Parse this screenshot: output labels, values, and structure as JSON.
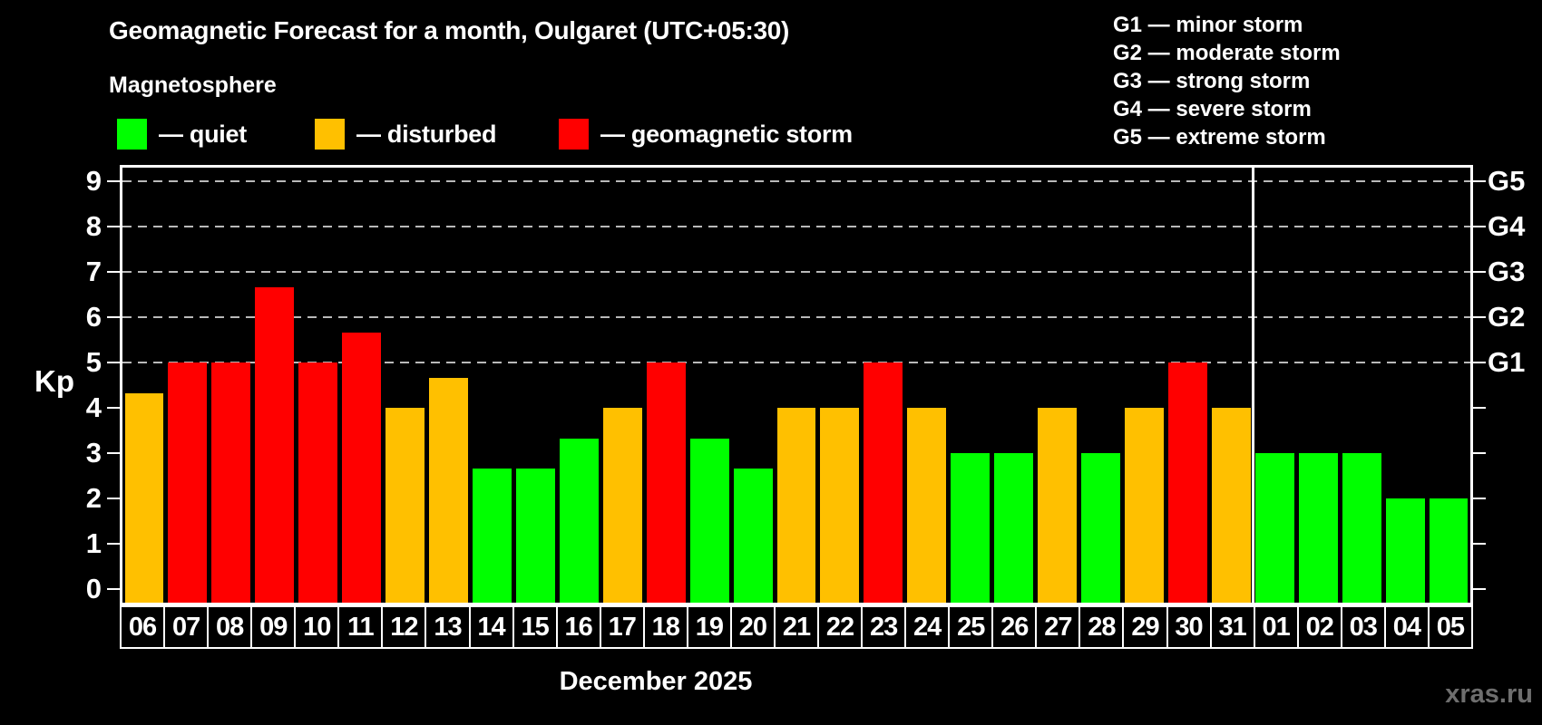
{
  "page": {
    "title": "Geomagnetic Forecast for a month, Oulgaret (UTC+05:30)",
    "subtitle": "Magnetosphere",
    "watermark": "xras.ru"
  },
  "legend": {
    "items": [
      {
        "name": "quiet",
        "label": "— quiet",
        "color": "#00ff00",
        "x": 129
      },
      {
        "name": "disturbed",
        "label": "— disturbed",
        "color": "#ffc000",
        "x": 347
      },
      {
        "name": "storm",
        "label": "— geomagnetic storm",
        "color": "#ff0000",
        "x": 616
      }
    ]
  },
  "g_scale_legend": {
    "lines": [
      "G1 — minor storm",
      "G2 — moderate storm",
      "G3 — strong storm",
      "G4 — severe storm",
      "G5 — extreme storm"
    ]
  },
  "chart_data": {
    "type": "bar",
    "title": "Geomagnetic Forecast for a month, Oulgaret (UTC+05:30)",
    "xlabel": "December 2025",
    "ylabel": "Kp",
    "ylim": [
      0,
      9
    ],
    "yticks": [
      0,
      1,
      2,
      3,
      4,
      5,
      6,
      7,
      8,
      9
    ],
    "gridline_levels": [
      5,
      6,
      7,
      8,
      9
    ],
    "grid": "horizontal dashed at storm levels only",
    "legend_position": "top-left",
    "right_axis": [
      {
        "label": "G1",
        "kp": 5
      },
      {
        "label": "G2",
        "kp": 6
      },
      {
        "label": "G3",
        "kp": 7
      },
      {
        "label": "G4",
        "kp": 8
      },
      {
        "label": "G5",
        "kp": 9
      }
    ],
    "month_divider_after_day": "31",
    "december_days_count": 26,
    "bars": [
      {
        "day": "06",
        "kp": 4.33,
        "status": "disturbed"
      },
      {
        "day": "07",
        "kp": 5,
        "status": "storm"
      },
      {
        "day": "08",
        "kp": 5,
        "status": "storm"
      },
      {
        "day": "09",
        "kp": 6.67,
        "status": "storm"
      },
      {
        "day": "10",
        "kp": 5,
        "status": "storm"
      },
      {
        "day": "11",
        "kp": 5.67,
        "status": "storm"
      },
      {
        "day": "12",
        "kp": 4,
        "status": "disturbed"
      },
      {
        "day": "13",
        "kp": 4.67,
        "status": "disturbed"
      },
      {
        "day": "14",
        "kp": 2.67,
        "status": "quiet"
      },
      {
        "day": "15",
        "kp": 2.67,
        "status": "quiet"
      },
      {
        "day": "16",
        "kp": 3.33,
        "status": "quiet"
      },
      {
        "day": "17",
        "kp": 4,
        "status": "disturbed"
      },
      {
        "day": "18",
        "kp": 5,
        "status": "storm"
      },
      {
        "day": "19",
        "kp": 3.33,
        "status": "quiet"
      },
      {
        "day": "20",
        "kp": 2.67,
        "status": "quiet"
      },
      {
        "day": "21",
        "kp": 4,
        "status": "disturbed"
      },
      {
        "day": "22",
        "kp": 4,
        "status": "disturbed"
      },
      {
        "day": "23",
        "kp": 5,
        "status": "storm"
      },
      {
        "day": "24",
        "kp": 4,
        "status": "disturbed"
      },
      {
        "day": "25",
        "kp": 3,
        "status": "quiet"
      },
      {
        "day": "26",
        "kp": 3,
        "status": "quiet"
      },
      {
        "day": "27",
        "kp": 4,
        "status": "disturbed"
      },
      {
        "day": "28",
        "kp": 3,
        "status": "quiet"
      },
      {
        "day": "29",
        "kp": 4,
        "status": "disturbed"
      },
      {
        "day": "30",
        "kp": 5,
        "status": "storm"
      },
      {
        "day": "31",
        "kp": 4,
        "status": "disturbed"
      },
      {
        "day": "01",
        "kp": 3,
        "status": "quiet"
      },
      {
        "day": "02",
        "kp": 3,
        "status": "quiet"
      },
      {
        "day": "03",
        "kp": 3,
        "status": "quiet"
      },
      {
        "day": "04",
        "kp": 2,
        "status": "quiet"
      },
      {
        "day": "05",
        "kp": 2,
        "status": "quiet"
      }
    ]
  },
  "colors": {
    "background": "#000000",
    "quiet": "#00ff00",
    "disturbed": "#ffc000",
    "storm": "#ff0000",
    "frame": "#ffffff",
    "gridline": "#b9b9b9",
    "watermark": "#6e6e6e"
  }
}
